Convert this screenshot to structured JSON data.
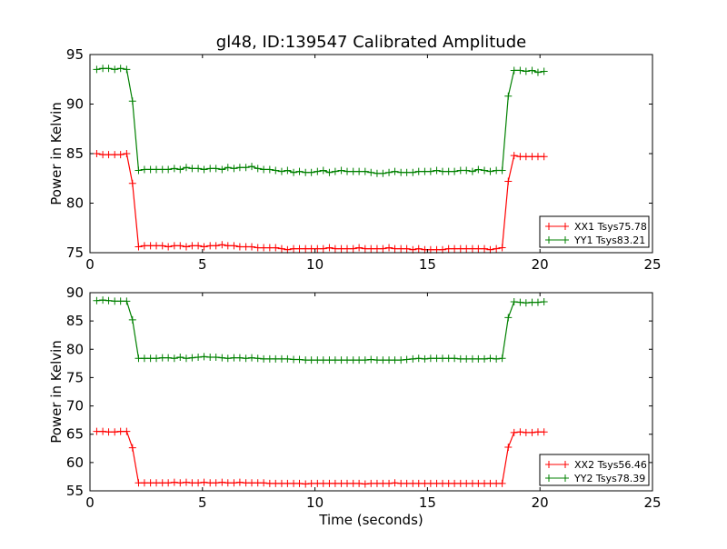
{
  "chart_data": [
    {
      "type": "line",
      "title": "gl48, ID:139547 Calibrated Amplitude",
      "xlabel": "",
      "ylabel": "Power in Kelvin",
      "xlim": [
        0,
        25
      ],
      "ylim": [
        75,
        95
      ],
      "xticks": [
        0,
        5,
        10,
        15,
        20,
        25
      ],
      "yticks": [
        75,
        80,
        85,
        90,
        95
      ],
      "grid": false,
      "legend_position": "lower-right",
      "x": [
        0.3,
        0.57,
        0.83,
        1.1,
        1.36,
        1.63,
        1.89,
        2.16,
        2.42,
        2.69,
        2.95,
        3.22,
        3.48,
        3.75,
        4.01,
        4.28,
        4.54,
        4.81,
        5.07,
        5.34,
        5.6,
        5.87,
        6.13,
        6.4,
        6.66,
        6.93,
        7.19,
        7.46,
        7.72,
        7.99,
        8.25,
        8.52,
        8.78,
        9.05,
        9.31,
        9.58,
        9.84,
        10.11,
        10.37,
        10.64,
        10.9,
        11.17,
        11.43,
        11.7,
        11.96,
        12.23,
        12.49,
        12.76,
        13.02,
        13.29,
        13.55,
        13.82,
        14.08,
        14.35,
        14.61,
        14.88,
        15.14,
        15.41,
        15.67,
        15.94,
        16.2,
        16.47,
        16.73,
        17.0,
        17.26,
        17.53,
        17.79,
        18.06,
        18.32,
        18.59,
        18.85,
        19.12,
        19.38,
        19.65,
        19.91,
        20.18
      ],
      "series": [
        {
          "name": "XX1 Tsys75.78",
          "color": "#ff0000",
          "values": [
            85.0,
            84.9,
            84.9,
            84.9,
            84.9,
            85.0,
            82.0,
            75.6,
            75.7,
            75.7,
            75.7,
            75.7,
            75.6,
            75.7,
            75.7,
            75.6,
            75.7,
            75.7,
            75.6,
            75.7,
            75.7,
            75.8,
            75.7,
            75.7,
            75.6,
            75.6,
            75.6,
            75.5,
            75.5,
            75.5,
            75.5,
            75.4,
            75.3,
            75.4,
            75.4,
            75.4,
            75.4,
            75.4,
            75.4,
            75.5,
            75.4,
            75.4,
            75.4,
            75.4,
            75.5,
            75.4,
            75.4,
            75.4,
            75.4,
            75.5,
            75.4,
            75.4,
            75.4,
            75.3,
            75.4,
            75.3,
            75.3,
            75.3,
            75.3,
            75.4,
            75.4,
            75.4,
            75.4,
            75.4,
            75.4,
            75.4,
            75.3,
            75.4,
            75.5,
            82.2,
            84.8,
            84.7,
            84.7,
            84.7,
            84.7,
            84.7
          ]
        },
        {
          "name": "YY1 Tsys83.21",
          "color": "#008000",
          "values": [
            93.5,
            93.6,
            93.6,
            93.5,
            93.6,
            93.5,
            90.3,
            83.3,
            83.4,
            83.4,
            83.4,
            83.4,
            83.4,
            83.5,
            83.4,
            83.6,
            83.5,
            83.5,
            83.4,
            83.5,
            83.5,
            83.4,
            83.6,
            83.5,
            83.6,
            83.6,
            83.7,
            83.5,
            83.4,
            83.4,
            83.3,
            83.2,
            83.3,
            83.1,
            83.2,
            83.1,
            83.1,
            83.2,
            83.3,
            83.1,
            83.2,
            83.3,
            83.2,
            83.2,
            83.2,
            83.2,
            83.1,
            83.0,
            83.0,
            83.1,
            83.2,
            83.1,
            83.1,
            83.1,
            83.2,
            83.2,
            83.2,
            83.3,
            83.2,
            83.2,
            83.2,
            83.3,
            83.3,
            83.2,
            83.4,
            83.3,
            83.2,
            83.3,
            83.3,
            90.8,
            93.4,
            93.4,
            93.3,
            93.4,
            93.2,
            93.3
          ]
        }
      ]
    },
    {
      "type": "line",
      "title": "",
      "xlabel": "Time (seconds)",
      "ylabel": "Power in Kelvin",
      "xlim": [
        0,
        25
      ],
      "ylim": [
        55,
        90
      ],
      "xticks": [
        0,
        5,
        10,
        15,
        20,
        25
      ],
      "yticks": [
        55,
        60,
        65,
        70,
        75,
        80,
        85,
        90
      ],
      "grid": false,
      "legend_position": "lower-right",
      "x": [
        0.3,
        0.57,
        0.83,
        1.1,
        1.36,
        1.63,
        1.89,
        2.16,
        2.42,
        2.69,
        2.95,
        3.22,
        3.48,
        3.75,
        4.01,
        4.28,
        4.54,
        4.81,
        5.07,
        5.34,
        5.6,
        5.87,
        6.13,
        6.4,
        6.66,
        6.93,
        7.19,
        7.46,
        7.72,
        7.99,
        8.25,
        8.52,
        8.78,
        9.05,
        9.31,
        9.58,
        9.84,
        10.11,
        10.37,
        10.64,
        10.9,
        11.17,
        11.43,
        11.7,
        11.96,
        12.23,
        12.49,
        12.76,
        13.02,
        13.29,
        13.55,
        13.82,
        14.08,
        14.35,
        14.61,
        14.88,
        15.14,
        15.41,
        15.67,
        15.94,
        16.2,
        16.47,
        16.73,
        17.0,
        17.26,
        17.53,
        17.79,
        18.06,
        18.32,
        18.59,
        18.85,
        19.12,
        19.38,
        19.65,
        19.91,
        20.18
      ],
      "series": [
        {
          "name": "XX2 Tsys56.46",
          "color": "#ff0000",
          "values": [
            65.5,
            65.5,
            65.4,
            65.4,
            65.5,
            65.5,
            62.6,
            56.4,
            56.4,
            56.4,
            56.4,
            56.4,
            56.4,
            56.5,
            56.4,
            56.5,
            56.4,
            56.4,
            56.5,
            56.4,
            56.4,
            56.5,
            56.4,
            56.4,
            56.5,
            56.4,
            56.4,
            56.4,
            56.4,
            56.3,
            56.3,
            56.3,
            56.3,
            56.3,
            56.3,
            56.2,
            56.3,
            56.3,
            56.3,
            56.3,
            56.3,
            56.3,
            56.3,
            56.3,
            56.3,
            56.2,
            56.3,
            56.3,
            56.3,
            56.3,
            56.4,
            56.3,
            56.3,
            56.3,
            56.3,
            56.3,
            56.3,
            56.3,
            56.3,
            56.3,
            56.3,
            56.3,
            56.3,
            56.3,
            56.3,
            56.3,
            56.3,
            56.3,
            56.3,
            62.7,
            65.3,
            65.4,
            65.3,
            65.3,
            65.4,
            65.4
          ]
        },
        {
          "name": "YY2 Tsys78.39",
          "color": "#008000",
          "values": [
            88.6,
            88.7,
            88.6,
            88.5,
            88.5,
            88.5,
            85.2,
            78.4,
            78.4,
            78.4,
            78.4,
            78.5,
            78.5,
            78.4,
            78.6,
            78.4,
            78.5,
            78.6,
            78.7,
            78.6,
            78.6,
            78.5,
            78.4,
            78.5,
            78.5,
            78.4,
            78.5,
            78.4,
            78.3,
            78.3,
            78.3,
            78.3,
            78.3,
            78.2,
            78.2,
            78.1,
            78.1,
            78.1,
            78.1,
            78.1,
            78.1,
            78.1,
            78.1,
            78.1,
            78.1,
            78.1,
            78.2,
            78.1,
            78.1,
            78.1,
            78.1,
            78.1,
            78.2,
            78.3,
            78.4,
            78.3,
            78.4,
            78.4,
            78.4,
            78.4,
            78.4,
            78.3,
            78.3,
            78.3,
            78.3,
            78.3,
            78.4,
            78.3,
            78.4,
            85.6,
            88.4,
            88.3,
            88.2,
            88.3,
            88.3,
            88.4
          ]
        }
      ]
    }
  ]
}
